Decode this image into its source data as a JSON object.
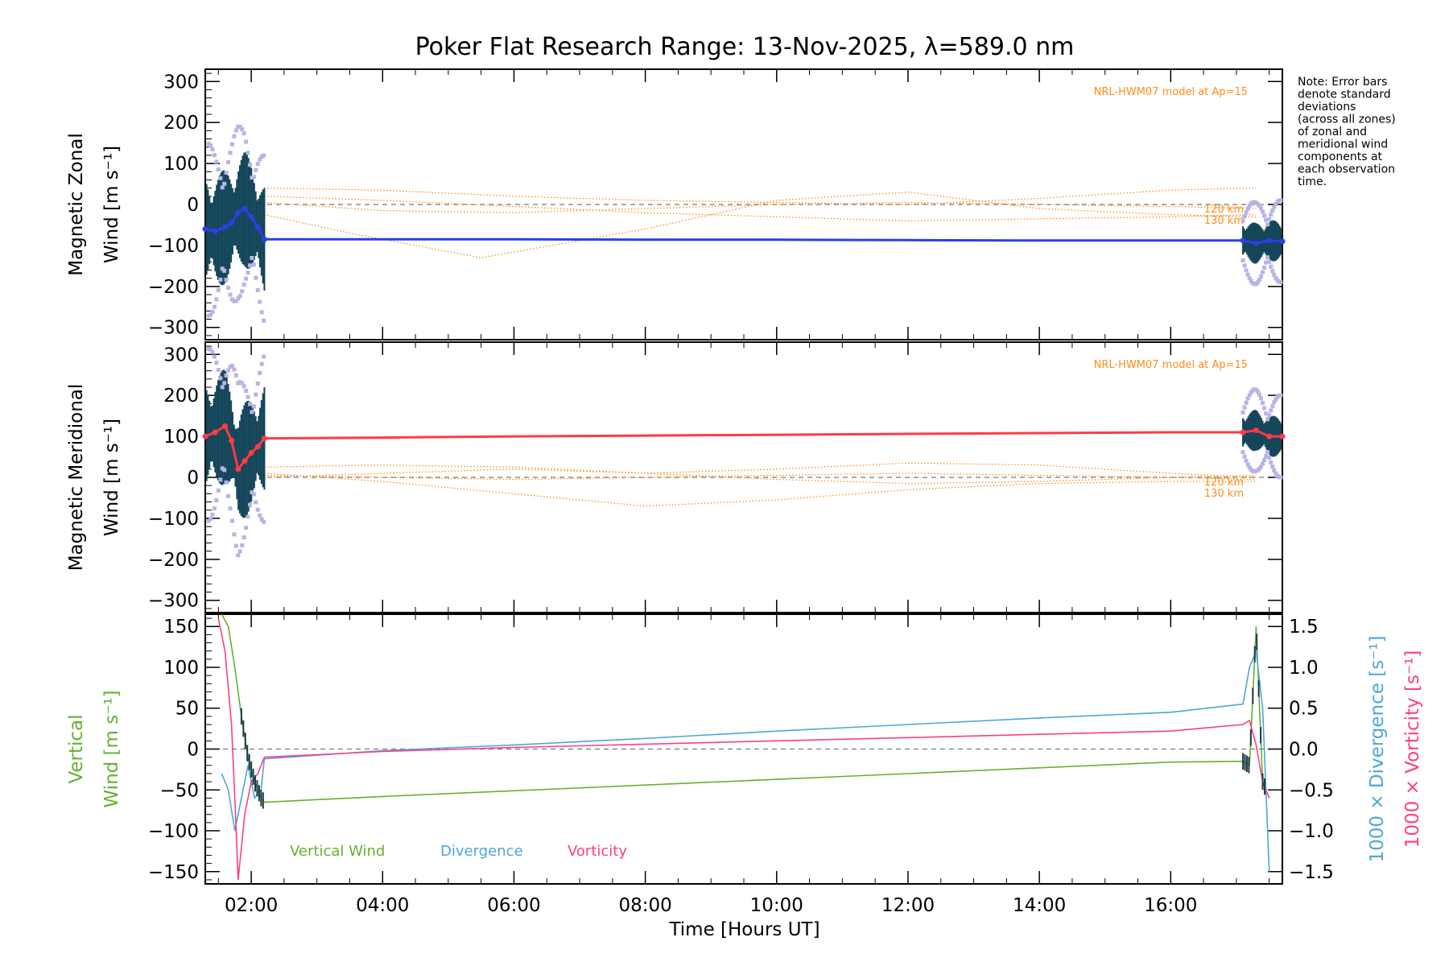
{
  "chart_data": {
    "type": "line",
    "title": "Poker Flat Research Range: 13-Nov-2025, λ=589.0 nm",
    "xlabel": "Time [Hours UT]",
    "xlim": [
      1.3,
      17.7
    ],
    "xticks": [
      {
        "value": 2,
        "label": "02:00"
      },
      {
        "value": 4,
        "label": "04:00"
      },
      {
        "value": 6,
        "label": "06:00"
      },
      {
        "value": 8,
        "label": "08:00"
      },
      {
        "value": 10,
        "label": "10:00"
      },
      {
        "value": 12,
        "label": "12:00"
      },
      {
        "value": 14,
        "label": "14:00"
      },
      {
        "value": 16,
        "label": "16:00"
      }
    ],
    "note": [
      "Note: Error bars",
      "denote standard",
      "deviations",
      "(across all zones)",
      "of zonal and",
      "meridional wind",
      "components at",
      "each observation",
      "time."
    ],
    "panels": [
      {
        "name": "zonal",
        "ylabel_line1": "Magnetic Zonal",
        "ylabel_line2": "Wind [m s⁻¹]",
        "ylim": [
          -330,
          330
        ],
        "yticks": [
          300,
          200,
          100,
          0,
          -100,
          -200,
          -300
        ],
        "ytick_labels": [
          "300",
          "200",
          "100",
          "0",
          "−100",
          "−200",
          "−300"
        ],
        "model_label": "NRL-HWM07 model at Ap=15",
        "model_alt_labels": [
          "120 km",
          "130 km"
        ],
        "series_color": "#2a3fe8",
        "series": {
          "name": "Magnetic Zonal Wind",
          "x": [
            1.3,
            1.45,
            1.6,
            1.7,
            1.8,
            1.9,
            2.0,
            2.1,
            2.2,
            4.0,
            6.0,
            8.0,
            10.0,
            12.0,
            14.0,
            16.0,
            17.1,
            17.3,
            17.5,
            17.7
          ],
          "y": [
            -60,
            -65,
            -55,
            -45,
            -20,
            -10,
            -30,
            -55,
            -85,
            -85,
            -85,
            -86,
            -86,
            -87,
            -88,
            -88,
            -88,
            -95,
            -88,
            -90
          ]
        },
        "models": [
          {
            "x": [
              2.2,
              3.5,
              5.5,
              8.0,
              10.0,
              12.0,
              14.0,
              16.0,
              17.3
            ],
            "y": [
              -25,
              -70,
              -130,
              -60,
              10,
              30,
              -10,
              -25,
              -30
            ]
          },
          {
            "x": [
              2.2,
              4.0,
              6.0,
              8.0,
              10.0,
              12.0,
              14.0,
              16.0,
              17.3
            ],
            "y": [
              40,
              35,
              20,
              10,
              5,
              0,
              15,
              35,
              40
            ]
          },
          {
            "x": [
              2.2,
              4.0,
              6.0,
              8.0,
              10.0,
              12.0,
              14.0,
              16.0,
              17.3
            ],
            "y": [
              20,
              10,
              -5,
              -20,
              -30,
              -40,
              -35,
              -30,
              -25
            ]
          },
          {
            "x": [
              2.2,
              4.0,
              6.0,
              8.0,
              10.0,
              12.0,
              14.0,
              16.0,
              17.3
            ],
            "y": [
              5,
              -15,
              -20,
              -10,
              0,
              5,
              0,
              -5,
              -10
            ]
          }
        ]
      },
      {
        "name": "meridional",
        "ylabel_line1": "Magnetic Meridional",
        "ylabel_line2": "Wind [m s⁻¹]",
        "ylim": [
          -330,
          330
        ],
        "yticks": [
          300,
          200,
          100,
          0,
          -100,
          -200,
          -300
        ],
        "ytick_labels": [
          "300",
          "200",
          "100",
          "0",
          "−100",
          "−200",
          "−300"
        ],
        "model_label": "NRL-HWM07 model at Ap=15",
        "model_alt_labels": [
          "120 km",
          "130 km"
        ],
        "series_color": "#ff3b45",
        "series": {
          "name": "Magnetic Meridional Wind",
          "x": [
            1.3,
            1.45,
            1.6,
            1.7,
            1.8,
            1.9,
            2.0,
            2.1,
            2.2,
            4.0,
            6.0,
            8.0,
            10.0,
            12.0,
            14.0,
            16.0,
            17.1,
            17.3,
            17.5,
            17.7
          ],
          "y": [
            100,
            110,
            125,
            90,
            20,
            40,
            60,
            75,
            95,
            97,
            100,
            102,
            104,
            106,
            108,
            110,
            110,
            115,
            100,
            100
          ]
        },
        "models": [
          {
            "x": [
              2.2,
              4.0,
              6.0,
              8.0,
              10.0,
              12.0,
              14.0,
              16.0,
              17.3
            ],
            "y": [
              25,
              30,
              25,
              10,
              20,
              35,
              30,
              10,
              0
            ]
          },
          {
            "x": [
              2.2,
              4.0,
              6.0,
              8.0,
              10.0,
              12.0,
              14.0,
              16.0,
              17.3
            ],
            "y": [
              10,
              -10,
              -40,
              -70,
              -55,
              -30,
              -15,
              -10,
              -10
            ]
          },
          {
            "x": [
              2.2,
              4.0,
              6.0,
              8.0,
              10.0,
              12.0,
              14.0,
              16.0,
              17.3
            ],
            "y": [
              0,
              10,
              20,
              10,
              -5,
              -15,
              -10,
              0,
              5
            ]
          },
          {
            "x": [
              2.2,
              4.0,
              6.0,
              8.0,
              10.0,
              12.0,
              14.0,
              16.0,
              17.3
            ],
            "y": [
              5,
              0,
              -5,
              0,
              5,
              10,
              5,
              0,
              -5
            ]
          }
        ]
      },
      {
        "name": "vertical",
        "ylabel_line1": "Vertical",
        "ylabel_line2": "Wind [m s⁻¹]",
        "ylim": [
          -165,
          165
        ],
        "yticks": [
          150,
          100,
          50,
          0,
          -50,
          -100,
          -150
        ],
        "ytick_labels": [
          "150",
          "100",
          "50",
          "0",
          "−50",
          "−100",
          "−150"
        ],
        "y2lim": [
          -1.65,
          1.65
        ],
        "y2ticks": [
          1.5,
          1.0,
          0.5,
          0.0,
          -0.5,
          -1.0,
          -1.5
        ],
        "y2tick_labels": [
          "1.5",
          "1.0",
          "0.5",
          "0.0",
          "−0.5",
          "−1.0",
          "−1.5"
        ],
        "y2label_divergence": "1000 × Divergence [s⁻¹]",
        "y2label_vorticity": "1000 × Vorticity [s⁻¹]",
        "legend": [
          "Vertical Wind",
          "Divergence",
          "Vorticity"
        ],
        "colors": {
          "vertical": "#66b032",
          "divergence": "#4ea6d8",
          "vorticity": "#ff3d85"
        },
        "series": [
          {
            "name": "Vertical Wind",
            "x": [
              1.55,
              1.65,
              1.75,
              1.85,
              1.95,
              2.05,
              2.15,
              2.2,
              4.0,
              6.0,
              8.0,
              10.0,
              12.0,
              14.0,
              16.0,
              17.1,
              17.2,
              17.3,
              17.4,
              17.5
            ],
            "y": [
              165,
              150,
              100,
              40,
              -10,
              -40,
              -60,
              -65,
              -58,
              -51,
              -44,
              -37,
              -30,
              -23,
              -16,
              -15,
              -20,
              150,
              -40,
              -60
            ]
          },
          {
            "name": "Divergence",
            "x": [
              1.55,
              1.65,
              1.75,
              1.85,
              1.95,
              2.05,
              2.15,
              2.2,
              4.0,
              6.0,
              8.0,
              10.0,
              12.0,
              14.0,
              16.0,
              17.1,
              17.2,
              17.3,
              17.4,
              17.5
            ],
            "y": [
              -0.3,
              -0.5,
              -1.0,
              -0.6,
              -0.2,
              -0.6,
              -0.5,
              -0.12,
              -0.02,
              0.05,
              0.13,
              0.22,
              0.3,
              0.38,
              0.45,
              0.55,
              1.0,
              1.2,
              0.5,
              -1.5
            ]
          },
          {
            "name": "Vorticity",
            "x": [
              1.5,
              1.6,
              1.7,
              1.75,
              1.8,
              1.9,
              2.0,
              2.1,
              2.2,
              4.0,
              6.0,
              8.0,
              10.0,
              12.0,
              14.0,
              16.0,
              17.1,
              17.2,
              17.3,
              17.4,
              17.5
            ],
            "y": [
              1.6,
              1.2,
              0.3,
              -0.6,
              -1.6,
              -0.8,
              -0.4,
              -0.3,
              -0.1,
              -0.03,
              0.02,
              0.06,
              0.1,
              0.14,
              0.18,
              0.22,
              0.3,
              0.35,
              0.05,
              -0.4,
              -0.6
            ]
          }
        ]
      }
    ]
  }
}
